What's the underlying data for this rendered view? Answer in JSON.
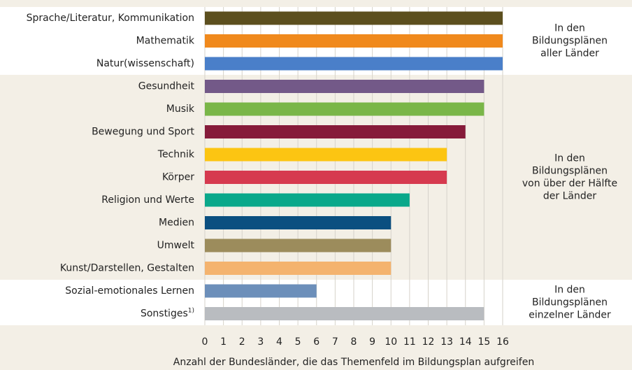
{
  "chart_data": {
    "type": "barh",
    "categories": [
      "Sprache/Literatur, Kommunikation",
      "Mathematik",
      "Natur(wissenschaft)",
      "Gesundheit",
      "Musik",
      "Bewegung und Sport",
      "Technik",
      "Körper",
      "Religion und Werte",
      "Medien",
      "Umwelt",
      "Kunst/Darstellen, Gestalten",
      "Sozial-emotionales Lernen",
      "Sonstiges"
    ],
    "footnote": "1)",
    "values": [
      16,
      16,
      16,
      15,
      15,
      14,
      13,
      13,
      11,
      10,
      10,
      10,
      6,
      15
    ],
    "colors": [
      "#5c4f1e",
      "#f0891c",
      "#4a7fc9",
      "#735988",
      "#7ab648",
      "#861b3a",
      "#fcc512",
      "#d63a4f",
      "#0aa88a",
      "#0b4f80",
      "#9c8c5c",
      "#f4b36e",
      "#6c8fba",
      "#b9bcc0"
    ],
    "xlim": [
      0,
      16
    ],
    "xticks": [
      0,
      1,
      2,
      3,
      4,
      5,
      6,
      7,
      8,
      9,
      10,
      11,
      12,
      13,
      14,
      15,
      16
    ],
    "xlabel": "Anzahl der Bundesländer, die das Themenfeld im Bildungsplan aufgreifen",
    "grid": true,
    "groups": [
      {
        "lines": [
          "In den",
          "Bildungsplänen",
          "aller Länder"
        ]
      },
      {
        "lines": [
          "In den",
          "Bildungsplänen",
          "von über der Hälfte",
          "der Länder"
        ]
      },
      {
        "lines": [
          "In den",
          "Bildungsplänen",
          "einzelner Länder"
        ]
      }
    ]
  }
}
